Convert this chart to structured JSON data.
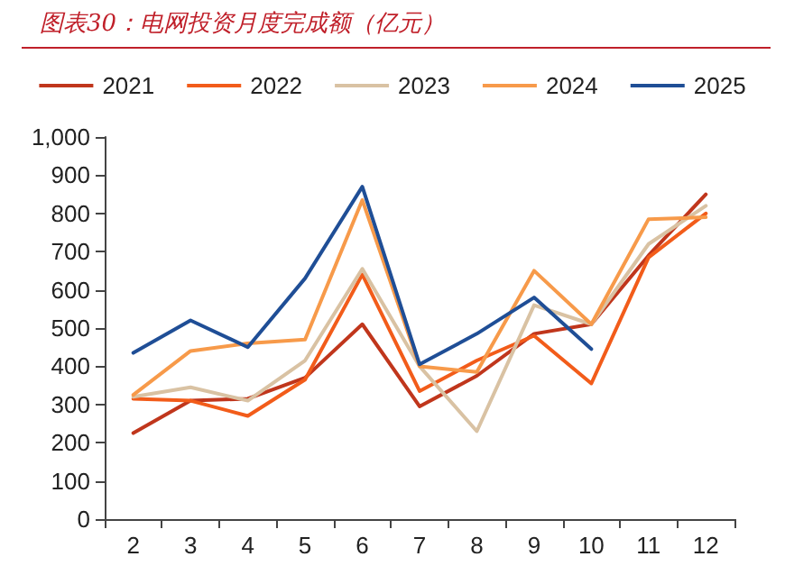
{
  "chart_data": {
    "type": "line",
    "title": "图表30：电网投资月度完成额（亿元）",
    "categories": [
      "2",
      "3",
      "4",
      "5",
      "6",
      "7",
      "8",
      "9",
      "10",
      "11",
      "12"
    ],
    "series": [
      {
        "name": "2021",
        "color": "#c0361c",
        "values": [
          225,
          310,
          315,
          370,
          510,
          295,
          375,
          485,
          510,
          690,
          850
        ]
      },
      {
        "name": "2022",
        "color": "#f25c1a",
        "values": [
          315,
          310,
          270,
          365,
          640,
          335,
          415,
          480,
          355,
          685,
          800
        ]
      },
      {
        "name": "2023",
        "color": "#d9c2a3",
        "values": [
          320,
          345,
          310,
          415,
          655,
          400,
          230,
          560,
          510,
          720,
          820
        ]
      },
      {
        "name": "2024",
        "color": "#f79a4a",
        "values": [
          325,
          440,
          460,
          470,
          835,
          400,
          385,
          650,
          510,
          785,
          790
        ]
      },
      {
        "name": "2025",
        "color": "#1f4e96",
        "values": [
          435,
          520,
          450,
          630,
          870,
          405,
          485,
          580,
          445,
          null,
          null
        ]
      }
    ],
    "ylim": [
      0,
      1000
    ],
    "yticks": [
      0,
      100,
      200,
      300,
      400,
      500,
      600,
      700,
      800,
      900,
      {
        "value": 1000,
        "label": "1,000"
      }
    ],
    "grid": false,
    "legend": "top",
    "marker": "none",
    "line_style": "solid"
  }
}
